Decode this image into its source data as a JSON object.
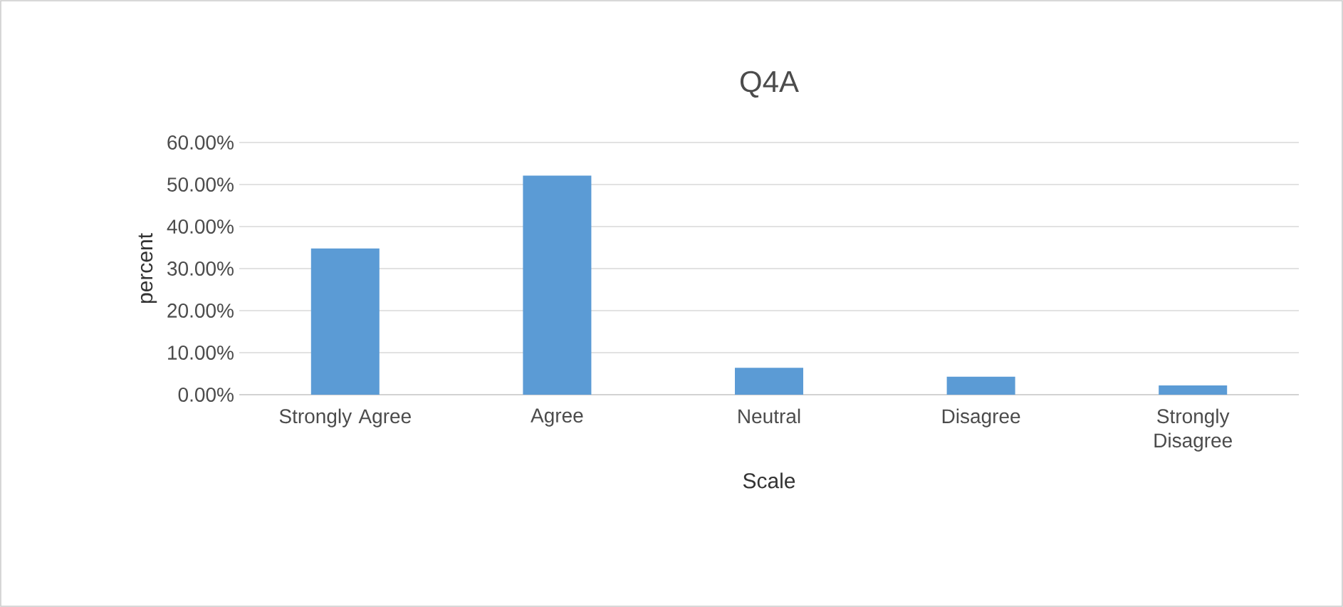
{
  "chart_data": {
    "type": "bar",
    "title": "Q4A",
    "xlabel": "Scale",
    "ylabel": "percent",
    "categories": [
      "Strongly Agree",
      "Agree",
      "Neutral",
      "Disagree",
      "Strongly Disagree"
    ],
    "values": [
      34.8,
      52.1,
      6.4,
      4.3,
      2.2
    ],
    "color": "#5b9bd5",
    "ylim": [
      0,
      60
    ],
    "yticks": [
      {
        "value": 0,
        "label": "0.00%"
      },
      {
        "value": 10,
        "label": "10.00%"
      },
      {
        "value": 20,
        "label": "20.00%"
      },
      {
        "value": 30,
        "label": "30.00%"
      },
      {
        "value": 40,
        "label": "40.00%"
      },
      {
        "value": 50,
        "label": "50.00%"
      },
      {
        "value": 60,
        "label": "60.00%"
      }
    ],
    "grid": "y"
  }
}
